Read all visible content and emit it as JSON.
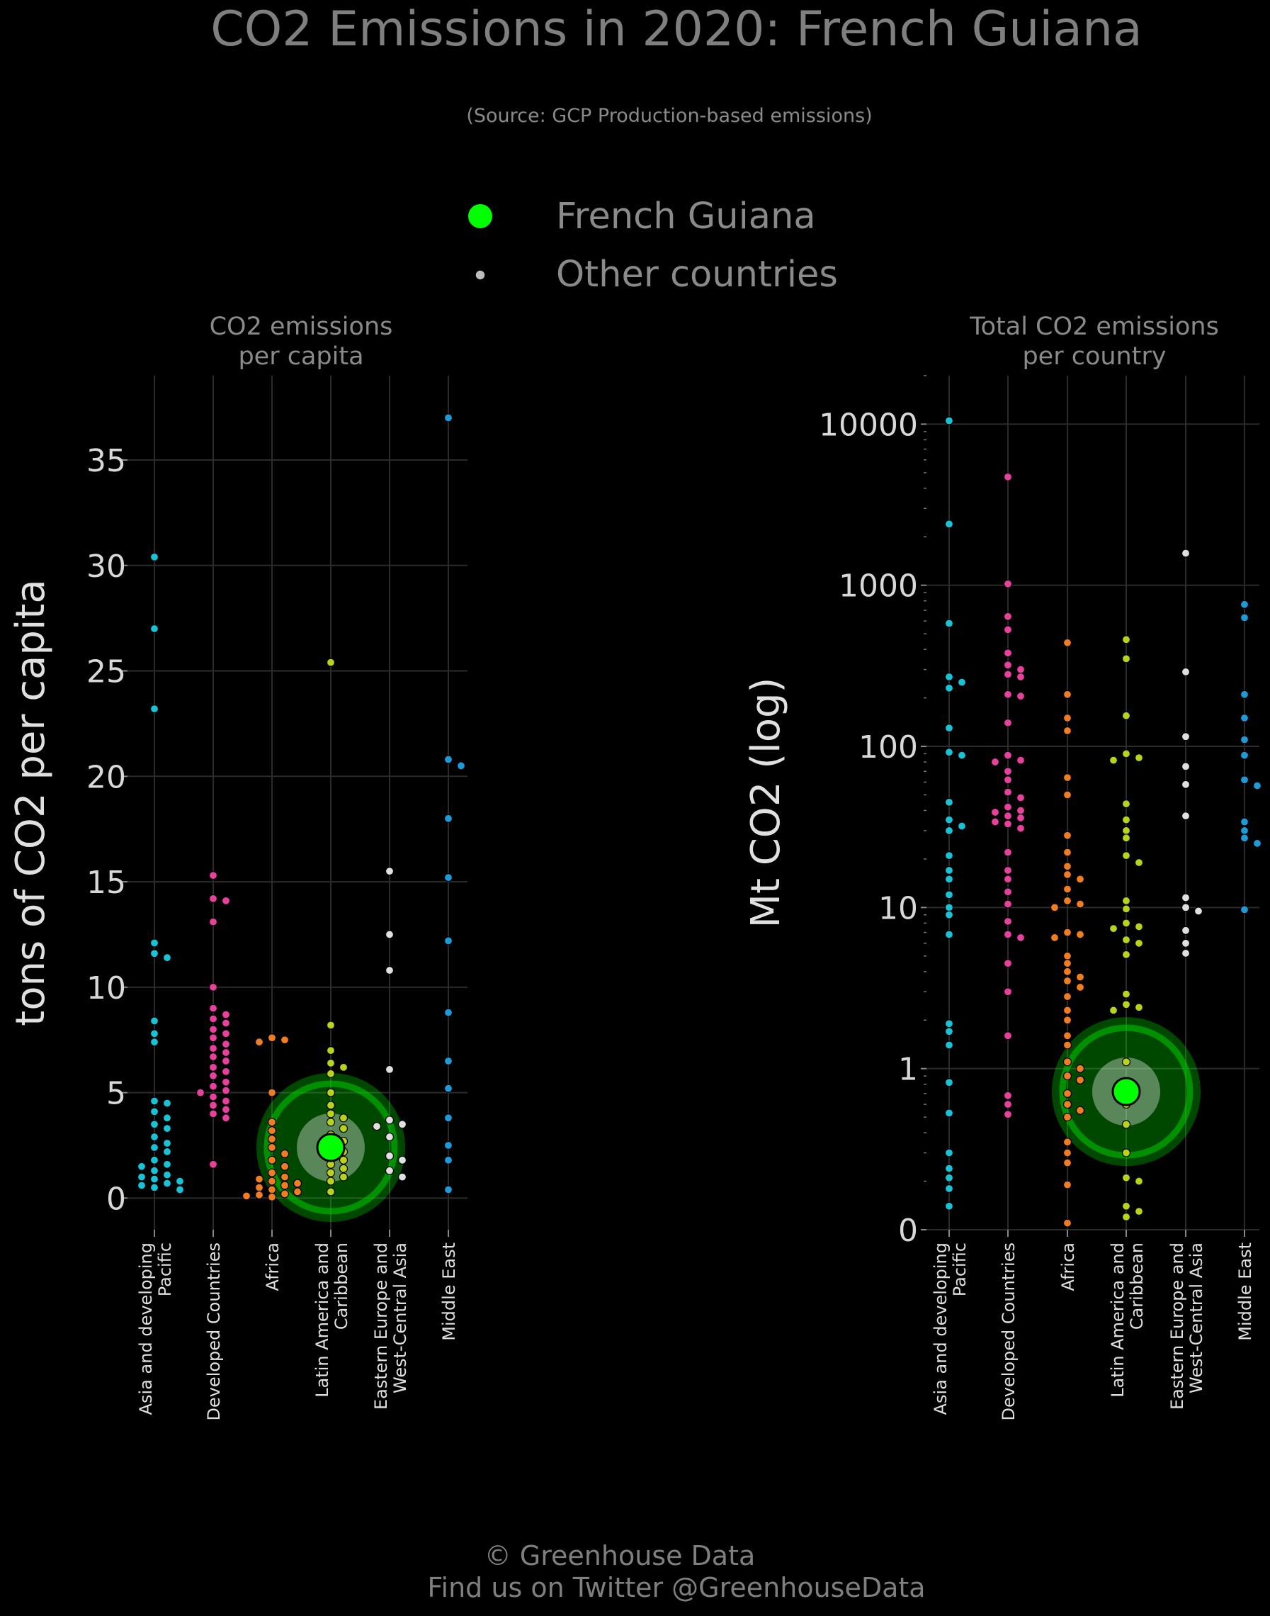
{
  "header": {
    "title": "CO2 Emissions in 2020: French Guiana",
    "subtitle": "(Source: GCP Production-based emissions)"
  },
  "legend": {
    "placement": "top-center",
    "items": [
      {
        "label": "French Guiana",
        "color": "#00ff00"
      },
      {
        "label": "Other countries",
        "color": "#bdbdbd"
      }
    ]
  },
  "footer": {
    "line1": "© Greenhouse Data",
    "line2": "Find us on Twitter @GreenhouseData"
  },
  "colors": {
    "background": "#000000",
    "grid": "#2b2b2b",
    "text": "#b5b5b5",
    "highlight": "#00ff00",
    "Asia and developing Pacific": "#17c3d6",
    "Developed Countries": "#e8409c",
    "Africa": "#f07d1f",
    "Latin America and Caribbean": "#b9d21b",
    "Eastern Europe and West-Central Asia": "#e0e0e0",
    "Middle East": "#1f9ad8"
  },
  "chart_data": [
    {
      "type": "scatter",
      "subtitle": [
        "CO2 emissions",
        "per capita"
      ],
      "ylabel": "tons of CO2 per capita",
      "y_scale": "linear",
      "ylim": [
        -1.5,
        39
      ],
      "yticks": [
        0,
        5,
        10,
        15,
        20,
        25,
        30,
        35
      ],
      "ytick_labels": [
        "0",
        "5",
        "10",
        "15",
        "20",
        "25",
        "30",
        "35"
      ],
      "grid": true,
      "categories": [
        [
          "Asia and developing",
          "Pacific"
        ],
        [
          "Developed Countries"
        ],
        [
          "Africa"
        ],
        [
          "Latin America and",
          "Caribbean"
        ],
        [
          "Eastern Europe and",
          "West-Central Asia"
        ],
        [
          "Middle East"
        ]
      ],
      "highlight": {
        "name": "French Guiana",
        "category": 3,
        "value": 2.4
      },
      "series": [
        {
          "region": "Asia and developing Pacific",
          "values": [
            30.4,
            27.0,
            23.2,
            12.1,
            11.6,
            11.4,
            8.4,
            7.8,
            7.4,
            4.6,
            4.5,
            4.1,
            3.8,
            3.5,
            3.3,
            2.9,
            2.6,
            2.4,
            2.2,
            1.8,
            1.6,
            1.5,
            1.3,
            1.1,
            1.0,
            0.9,
            0.8,
            0.7,
            0.6,
            0.5,
            0.4
          ]
        },
        {
          "region": "Developed Countries",
          "values": [
            15.3,
            14.2,
            14.1,
            13.1,
            10.0,
            9.0,
            8.7,
            8.5,
            8.3,
            8.0,
            7.8,
            7.6,
            7.3,
            7.1,
            6.9,
            6.7,
            6.5,
            6.2,
            6.0,
            5.8,
            5.5,
            5.3,
            5.1,
            5.0,
            4.8,
            4.6,
            4.4,
            4.2,
            4.0,
            3.8,
            1.6
          ]
        },
        {
          "region": "Africa",
          "values": [
            7.6,
            7.5,
            7.4,
            5.0,
            3.6,
            3.2,
            2.8,
            2.4,
            2.1,
            1.8,
            1.5,
            1.2,
            1.0,
            0.9,
            0.8,
            0.7,
            0.6,
            0.5,
            0.4,
            0.3,
            0.2,
            0.15,
            0.1,
            0.05
          ]
        },
        {
          "region": "Latin America and Caribbean",
          "values": [
            25.4,
            8.2,
            7.0,
            6.4,
            6.2,
            5.9,
            5.0,
            4.4,
            4.0,
            3.8,
            3.6,
            3.3,
            3.0,
            2.7,
            2.5,
            2.2,
            2.0,
            1.8,
            1.6,
            1.4,
            1.2,
            1.0,
            0.8,
            0.3
          ]
        },
        {
          "region": "Eastern Europe and West-Central Asia",
          "values": [
            15.5,
            12.5,
            10.8,
            6.1,
            3.7,
            3.5,
            3.4,
            2.9,
            2.0,
            1.8,
            1.3,
            1.0
          ]
        },
        {
          "region": "Middle East",
          "values": [
            37.0,
            20.8,
            20.5,
            18.0,
            15.2,
            12.2,
            8.8,
            6.5,
            5.2,
            3.8,
            2.5,
            1.8,
            0.4
          ]
        }
      ]
    },
    {
      "type": "scatter",
      "subtitle": [
        "Total CO2 emissions",
        "per country"
      ],
      "ylabel": "Mt CO2 (log)",
      "y_scale": "log",
      "ylim": [
        0.1,
        20000
      ],
      "yticks": [
        0.1,
        1,
        10,
        100,
        1000,
        10000
      ],
      "ytick_labels": [
        "0",
        "1",
        "10",
        "100",
        "1000",
        "10000"
      ],
      "grid": true,
      "categories": [
        [
          "Asia and developing",
          "Pacific"
        ],
        [
          "Developed Countries"
        ],
        [
          "Africa"
        ],
        [
          "Latin America and",
          "Caribbean"
        ],
        [
          "Eastern Europe and",
          "West-Central Asia"
        ],
        [
          "Middle East"
        ]
      ],
      "highlight": {
        "name": "French Guiana",
        "category": 3,
        "value": 0.72
      },
      "series": [
        {
          "region": "Asia and developing Pacific",
          "values": [
            10500,
            2400,
            580,
            270,
            250,
            230,
            130,
            92,
            88,
            45,
            35,
            32,
            30,
            21,
            17,
            15,
            12,
            10,
            9,
            6.8,
            1.9,
            1.7,
            1.4,
            0.82,
            0.53,
            0.3,
            0.24,
            0.21,
            0.18,
            0.14
          ]
        },
        {
          "region": "Developed Countries",
          "values": [
            4700,
            1020,
            640,
            530,
            380,
            320,
            300,
            280,
            270,
            210,
            205,
            140,
            88,
            82,
            80,
            70,
            62,
            52,
            48,
            42,
            40,
            39,
            37,
            36,
            34,
            33,
            31,
            22,
            17,
            15,
            12.5,
            10.5,
            8.2,
            6.8,
            6.5,
            4.5,
            3.0,
            1.6,
            0.68,
            0.6,
            0.52
          ]
        },
        {
          "region": "Africa",
          "values": [
            440,
            210,
            150,
            125,
            64,
            50,
            28,
            22,
            18,
            16,
            15,
            13,
            11,
            10.5,
            10,
            7,
            6.8,
            6.5,
            5,
            4.5,
            4,
            3.7,
            3.5,
            3.2,
            2.8,
            2.3,
            2.0,
            1.6,
            1.4,
            1.1,
            1.0,
            0.9,
            0.85,
            0.7,
            0.6,
            0.55,
            0.5,
            0.35,
            0.3,
            0.26,
            0.19,
            0.11
          ]
        },
        {
          "region": "Latin America and Caribbean",
          "values": [
            460,
            350,
            155,
            90,
            85,
            82,
            44,
            35,
            30,
            27,
            21,
            19,
            11,
            9.8,
            8,
            7.6,
            7.4,
            6.3,
            6,
            5.1,
            2.9,
            2.5,
            2.4,
            2.3,
            1.1,
            0.6,
            0.45,
            0.3,
            0.21,
            0.2,
            0.14,
            0.13,
            0.12
          ]
        },
        {
          "region": "Eastern Europe and West-Central Asia",
          "values": [
            1580,
            290,
            115,
            75,
            58,
            37,
            11.5,
            10,
            9.5,
            7.2,
            6,
            5.2
          ]
        },
        {
          "region": "Middle East",
          "values": [
            760,
            630,
            210,
            150,
            110,
            88,
            62,
            57,
            34,
            30,
            27,
            25,
            9.7
          ]
        }
      ]
    }
  ]
}
